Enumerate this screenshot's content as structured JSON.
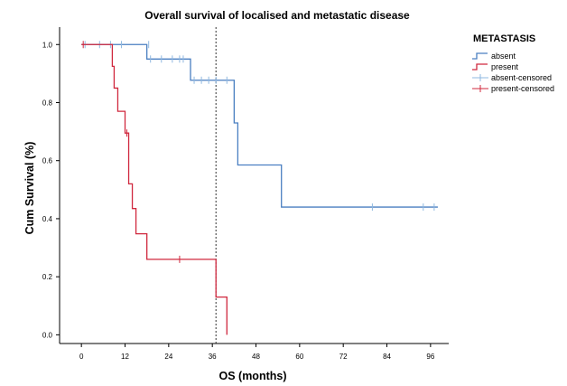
{
  "chart_data": {
    "type": "line",
    "title": "Overall survival of localised and metastatic disease",
    "xlabel": "OS (months)",
    "ylabel": "Cum Survival (%)",
    "xlim": [
      -6,
      101
    ],
    "ylim": [
      -0.03,
      1.06
    ],
    "x_ticks": [
      0,
      12,
      24,
      36,
      48,
      60,
      72,
      84,
      96
    ],
    "x_tick_labels": [
      "0",
      "12",
      "24",
      "36",
      "48",
      "60",
      "72",
      "84",
      "96"
    ],
    "y_ticks": [
      0.0,
      0.2,
      0.4,
      0.6,
      0.8,
      1.0
    ],
    "y_tick_labels": [
      "0.0",
      "0.2",
      "0.4",
      "0.6",
      "0.8",
      "1.0"
    ],
    "reference_line_x": 37,
    "legend": {
      "title": "METASTASIS",
      "position": "right",
      "entries": [
        {
          "label": "absent",
          "color": "#4a7fc1",
          "marker": "step"
        },
        {
          "label": "present",
          "color": "#d0283e",
          "marker": "step"
        },
        {
          "label": "absent-censored",
          "color": "#8fb8e0",
          "marker": "plus"
        },
        {
          "label": "present-censored",
          "color": "#d0283e",
          "marker": "plus"
        }
      ]
    },
    "series": [
      {
        "name": "absent",
        "color": "#4a7fc1",
        "censor_color": "#8fb8e0",
        "steps": [
          {
            "x": 0,
            "y": 1.0
          },
          {
            "x": 18,
            "y": 0.95
          },
          {
            "x": 30,
            "y": 0.877
          },
          {
            "x": 42,
            "y": 0.73
          },
          {
            "x": 43,
            "y": 0.585
          },
          {
            "x": 55,
            "y": 0.44
          },
          {
            "x": 98,
            "y": 0.44
          }
        ],
        "censored": [
          {
            "x": 1,
            "y": 1.0
          },
          {
            "x": 5,
            "y": 1.0
          },
          {
            "x": 8,
            "y": 1.0
          },
          {
            "x": 11,
            "y": 1.0
          },
          {
            "x": 18.5,
            "y": 1.0
          },
          {
            "x": 19,
            "y": 0.95
          },
          {
            "x": 22,
            "y": 0.95
          },
          {
            "x": 25,
            "y": 0.95
          },
          {
            "x": 27,
            "y": 0.95
          },
          {
            "x": 28,
            "y": 0.95
          },
          {
            "x": 31,
            "y": 0.877
          },
          {
            "x": 33,
            "y": 0.877
          },
          {
            "x": 35,
            "y": 0.877
          },
          {
            "x": 37,
            "y": 0.877
          },
          {
            "x": 40,
            "y": 0.877
          },
          {
            "x": 80,
            "y": 0.44
          },
          {
            "x": 94,
            "y": 0.44
          },
          {
            "x": 97,
            "y": 0.44
          }
        ]
      },
      {
        "name": "present",
        "color": "#d0283e",
        "censor_color": "#d0283e",
        "steps": [
          {
            "x": 0,
            "y": 1.0
          },
          {
            "x": 8.5,
            "y": 0.925
          },
          {
            "x": 9,
            "y": 0.85
          },
          {
            "x": 10,
            "y": 0.77
          },
          {
            "x": 12,
            "y": 0.695
          },
          {
            "x": 13,
            "y": 0.52
          },
          {
            "x": 14,
            "y": 0.435
          },
          {
            "x": 15,
            "y": 0.348
          },
          {
            "x": 18,
            "y": 0.26
          },
          {
            "x": 37,
            "y": 0.13
          },
          {
            "x": 40,
            "y": 0.0
          }
        ],
        "censored": [
          {
            "x": 0.5,
            "y": 1.0
          },
          {
            "x": 12.5,
            "y": 0.695
          },
          {
            "x": 27,
            "y": 0.26
          }
        ]
      }
    ]
  }
}
